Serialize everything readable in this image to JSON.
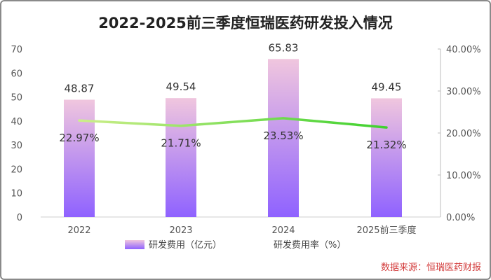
{
  "chart_data": {
    "type": "bar",
    "title": "2022-2025前三季度恒瑞医药研发投入情况",
    "categories": [
      "2022",
      "2023",
      "2024",
      "2025前三季度"
    ],
    "series": [
      {
        "name": "研发费用（亿元）",
        "type": "bar",
        "axis": "left",
        "values": [
          48.87,
          49.54,
          65.83,
          49.45
        ],
        "labels": [
          "48.87",
          "49.54",
          "65.83",
          "49.45"
        ]
      },
      {
        "name": "研发费用率（%）",
        "type": "line",
        "axis": "right",
        "values": [
          22.97,
          21.71,
          23.53,
          21.32
        ],
        "labels": [
          "22.97%",
          "21.71%",
          "23.53%",
          "21.32%"
        ]
      }
    ],
    "y_left": {
      "min": 0,
      "max": 70,
      "ticks": [
        "0",
        "10",
        "20",
        "30",
        "40",
        "50",
        "60",
        "70"
      ]
    },
    "y_right": {
      "min": 0,
      "max": 40,
      "ticks": [
        "0.00%",
        "10.00%",
        "20.00%",
        "30.00%",
        "40.00%"
      ]
    },
    "source": "数据来源：恒瑞医药财报",
    "colors": {
      "bar_top": "#f0c6de",
      "bar_bottom": "#8f62ff",
      "line_start": "#cdee8a",
      "line_end": "#3ed12e",
      "source": "#d23a3a"
    }
  }
}
